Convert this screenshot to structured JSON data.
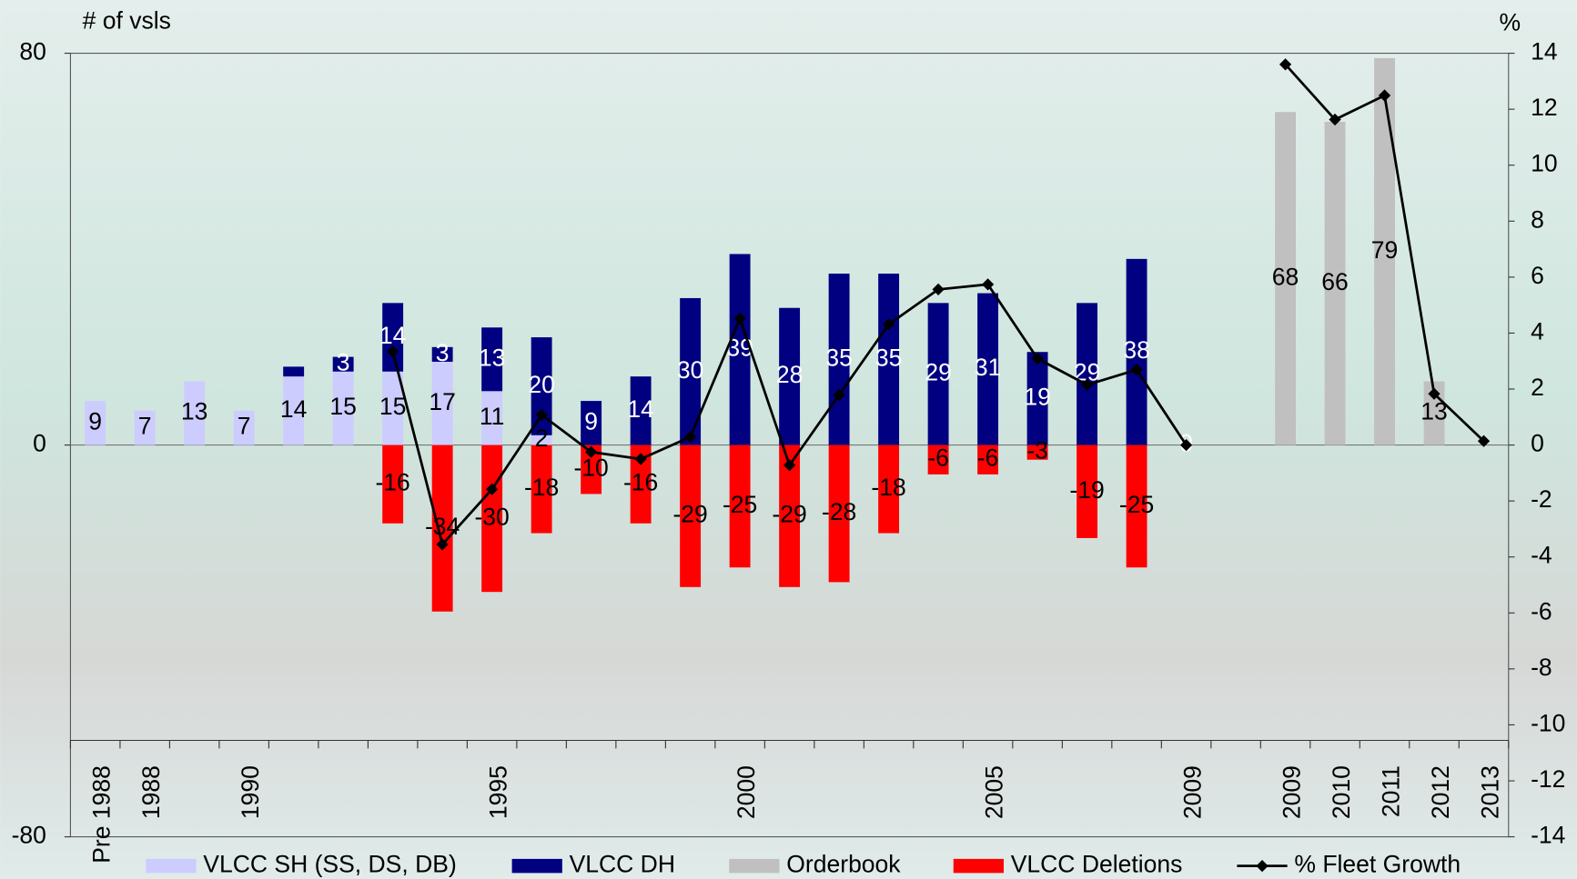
{
  "chart_data": {
    "type": "bar",
    "stacked": true,
    "y_label": "# of vsls",
    "y2_label": "%",
    "categories": [
      "Pre 1988",
      "1988",
      null,
      "1990",
      null,
      null,
      null,
      null,
      "1995",
      null,
      null,
      null,
      null,
      "2000",
      null,
      null,
      null,
      null,
      "2005",
      null,
      null,
      null,
      "2009",
      null,
      "2009",
      "2010",
      "2011",
      "2012",
      "2013"
    ],
    "ylim": [
      -80,
      80
    ],
    "yticks": [
      -80,
      0,
      80
    ],
    "y2lim": [
      -14,
      14
    ],
    "y2ticks": [
      -14,
      -12,
      -10,
      -8,
      -6,
      -4,
      -2,
      0,
      2,
      4,
      6,
      8,
      10,
      12,
      14
    ],
    "series": [
      {
        "name": "VLCC SH (SS, DS, DB)",
        "type": "bar",
        "color": "#ccccff",
        "label_color": "#000000",
        "values": [
          9,
          7,
          13,
          7,
          14,
          15,
          15,
          17,
          11,
          2,
          null,
          null,
          null,
          null,
          null,
          null,
          null,
          null,
          null,
          null,
          null,
          null,
          null,
          null,
          null,
          null,
          null,
          null,
          null
        ]
      },
      {
        "name": "VLCC DH",
        "type": "bar",
        "color": "#000080",
        "label_color": "#ffffff",
        "values": [
          null,
          null,
          null,
          null,
          2,
          3,
          14,
          3,
          13,
          20,
          9,
          14,
          30,
          39,
          28,
          35,
          35,
          29,
          31,
          19,
          29,
          38,
          0,
          null,
          null,
          null,
          null,
          null,
          null
        ],
        "value_labels": [
          null,
          null,
          null,
          null,
          null,
          "3",
          "14",
          "3",
          "13",
          "20",
          "9",
          "14",
          "30",
          "39",
          "28",
          "35",
          "35",
          "29",
          "31",
          "19",
          "29",
          "38",
          "0",
          null,
          null,
          null,
          null,
          null,
          null
        ]
      },
      {
        "name": "Orderbook",
        "type": "bar",
        "color": "#c0c0c0",
        "label_color": "#000000",
        "values": [
          null,
          null,
          null,
          null,
          null,
          null,
          null,
          null,
          null,
          null,
          null,
          null,
          null,
          null,
          null,
          null,
          null,
          null,
          null,
          null,
          null,
          null,
          null,
          null,
          68,
          66,
          79,
          13,
          null
        ]
      },
      {
        "name": "VLCC Deletions",
        "type": "bar",
        "color": "#ff0000",
        "label_color": "#000000",
        "values": [
          null,
          null,
          null,
          null,
          null,
          null,
          -16,
          -34,
          -30,
          -18,
          -10,
          -16,
          -29,
          -25,
          -29,
          -28,
          -18,
          -6,
          -6,
          -3,
          -19,
          -25,
          null,
          null,
          null,
          null,
          null,
          null,
          null
        ]
      },
      {
        "name": "% Fleet Growth",
        "type": "line",
        "axis": "y2",
        "color": "#000000",
        "values": [
          null,
          null,
          null,
          null,
          null,
          null,
          3.34,
          -3.55,
          -1.58,
          1.08,
          -0.25,
          -0.5,
          0.29,
          4.52,
          -0.72,
          1.79,
          4.31,
          5.56,
          5.74,
          3.09,
          2.15,
          2.69,
          0,
          null,
          13.6,
          11.63,
          12.49,
          1.83,
          0.14
        ]
      }
    ]
  }
}
